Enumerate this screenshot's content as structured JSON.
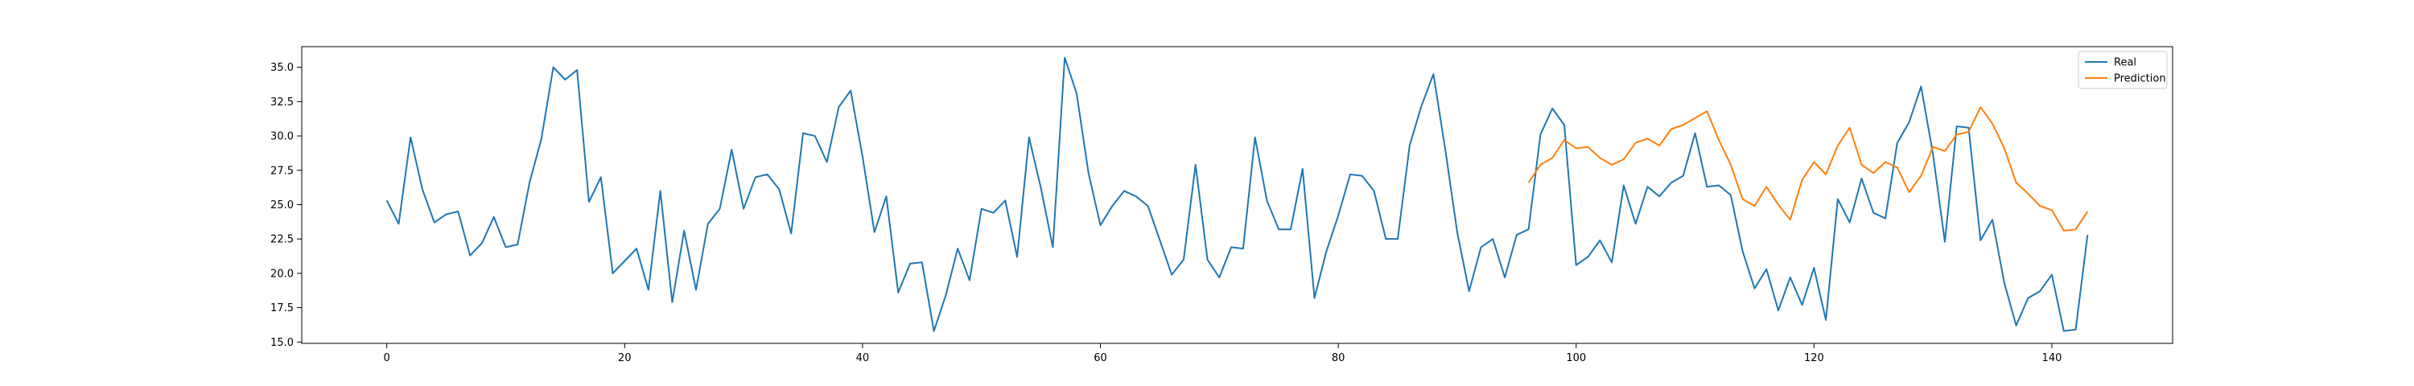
{
  "chart_data": {
    "type": "line",
    "title": "",
    "xlabel": "",
    "ylabel": "",
    "xlim": [
      -7.15,
      150.15
    ],
    "ylim": [
      14.9,
      36.5
    ],
    "grid": false,
    "legend_position": "top-right",
    "x_ticks": [
      0,
      20,
      40,
      60,
      80,
      100,
      120,
      140
    ],
    "y_ticks": [
      15.0,
      17.5,
      20.0,
      22.5,
      25.0,
      27.5,
      30.0,
      32.5,
      35.0
    ],
    "x_tick_labels": [
      "0",
      "20",
      "40",
      "60",
      "80",
      "100",
      "120",
      "140"
    ],
    "y_tick_labels": [
      "15.0",
      "17.5",
      "20.0",
      "22.5",
      "25.0",
      "27.5",
      "30.0",
      "32.5",
      "35.0"
    ],
    "series": [
      {
        "name": "Real",
        "color": "#1f77b4",
        "x_start": 0,
        "values": [
          25.3,
          23.6,
          29.9,
          26.1,
          23.7,
          24.3,
          24.5,
          21.3,
          22.2,
          24.1,
          21.9,
          22.1,
          26.6,
          29.8,
          35.0,
          34.1,
          34.8,
          25.2,
          27.0,
          20.0,
          20.9,
          21.8,
          18.8,
          26.0,
          17.9,
          23.1,
          18.8,
          23.6,
          24.7,
          29.0,
          24.7,
          27.0,
          27.2,
          26.1,
          22.9,
          30.2,
          30.0,
          28.1,
          32.1,
          33.3,
          28.5,
          23.0,
          25.6,
          18.6,
          20.7,
          20.8,
          15.8,
          18.4,
          21.8,
          19.5,
          24.7,
          24.4,
          25.3,
          21.2,
          29.9,
          26.2,
          21.9,
          35.7,
          33.1,
          27.3,
          23.5,
          24.9,
          26.0,
          25.6,
          24.9,
          22.4,
          19.9,
          21.0,
          27.9,
          21.0,
          19.7,
          21.9,
          21.8,
          29.9,
          25.3,
          23.2,
          23.2,
          27.6,
          18.2,
          21.6,
          24.2,
          27.2,
          27.1,
          26.0,
          22.5,
          22.5,
          29.3,
          32.2,
          34.5,
          29.0,
          23.0,
          18.7,
          21.9,
          22.5,
          19.7,
          22.8,
          23.2,
          30.1,
          32.0,
          30.8,
          20.6,
          21.2,
          22.4,
          20.8,
          26.4,
          23.6,
          26.3,
          25.6,
          26.6,
          27.1,
          30.2,
          26.3,
          26.4,
          25.7,
          21.6,
          18.9,
          20.3,
          17.3,
          19.7,
          17.7,
          20.4,
          16.6,
          25.4,
          23.7,
          26.9,
          24.4,
          24.0,
          29.5,
          31.0,
          33.6,
          28.7,
          22.3,
          30.7,
          30.6,
          22.4,
          23.9,
          19.3,
          16.2,
          18.2,
          18.7,
          19.9,
          15.8,
          15.9,
          22.8
        ]
      },
      {
        "name": "Prediction",
        "color": "#ff7f0e",
        "x_start": 96,
        "values": [
          26.6,
          27.9,
          28.4,
          29.7,
          29.1,
          29.2,
          28.4,
          27.9,
          28.3,
          29.5,
          29.8,
          29.3,
          30.5,
          30.8,
          31.3,
          31.8,
          29.7,
          27.9,
          25.4,
          24.9,
          26.3,
          25.0,
          23.9,
          26.8,
          28.1,
          27.2,
          29.3,
          30.6,
          27.9,
          27.3,
          28.1,
          27.7,
          25.9,
          27.1,
          29.2,
          28.9,
          30.1,
          30.3,
          32.1,
          30.9,
          29.1,
          26.6,
          25.8,
          24.9,
          24.6,
          23.1,
          23.2,
          24.5
        ]
      }
    ]
  }
}
